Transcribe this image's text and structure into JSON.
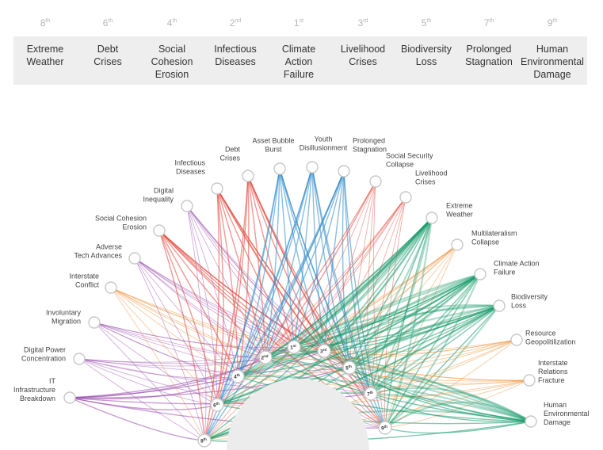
{
  "header": {
    "items": [
      {
        "rank": "8",
        "suffix": "th",
        "label": "Extreme\nWeather"
      },
      {
        "rank": "6",
        "suffix": "th",
        "label": "Debt\nCrises"
      },
      {
        "rank": "4",
        "suffix": "th",
        "label": "Social\nCohesion\nErosion"
      },
      {
        "rank": "2",
        "suffix": "nd",
        "label": "Infectious\nDiseases"
      },
      {
        "rank": "1",
        "suffix": "st",
        "label": "Climate\nAction\nFailure"
      },
      {
        "rank": "3",
        "suffix": "rd",
        "label": "Livelihood\nCrises"
      },
      {
        "rank": "5",
        "suffix": "th",
        "label": "Biodiversity\nLoss"
      },
      {
        "rank": "7",
        "suffix": "th",
        "label": "Prolonged\nStagnation"
      },
      {
        "rank": "9",
        "suffix": "th",
        "label": "Human\nEnvironmental\nDamage"
      }
    ]
  },
  "diagram": {
    "colors": {
      "red": "#e4473a",
      "blue": "#2a86c8",
      "green": "#1a9a6c",
      "orange": "#f08a2c",
      "purple": "#9a4cae",
      "node_fill": "#ffffff",
      "node_stroke": "#c8c8c8",
      "inner_arc": "#ececec"
    },
    "outer_nodes": [
      {
        "id": "it",
        "label": "IT\nInfrastructure\nBreakdown"
      },
      {
        "id": "dpc",
        "label": "Digital Power\nConcentration"
      },
      {
        "id": "im",
        "label": "Involuntary\nMigration"
      },
      {
        "id": "ic",
        "label": "Interstate\nConflict"
      },
      {
        "id": "ata",
        "label": "Adverse\nTech Advances"
      },
      {
        "id": "sce",
        "label": "Social Cohesion\nErosion"
      },
      {
        "id": "di",
        "label": "Digital\nInequality"
      },
      {
        "id": "id",
        "label": "Infectious\nDiseases"
      },
      {
        "id": "dc",
        "label": "Debt\nCrises"
      },
      {
        "id": "abb",
        "label": "Asset Bubble\nBurst"
      },
      {
        "id": "yd",
        "label": "Youth\nDisillusionment"
      },
      {
        "id": "ps",
        "label": "Prolonged\nStagnation"
      },
      {
        "id": "ssc",
        "label": "Social Security\nCollapse"
      },
      {
        "id": "lc",
        "label": "Livelihood\nCrises"
      },
      {
        "id": "ew",
        "label": "Extreme\nWeather"
      },
      {
        "id": "mc",
        "label": "Multilateralism\nCollapse"
      },
      {
        "id": "caf",
        "label": "Climate Action\nFailure"
      },
      {
        "id": "bl",
        "label": "Biodiversity\nLoss"
      },
      {
        "id": "rg",
        "label": "Resource\nGeopolitilization"
      },
      {
        "id": "irf",
        "label": "Interstate\nRelations\nFracture"
      },
      {
        "id": "hed",
        "label": "Human\nEnvironmental\nDamage"
      }
    ],
    "inner_nodes": [
      {
        "rank": "8",
        "suffix": "th"
      },
      {
        "rank": "6",
        "suffix": "th"
      },
      {
        "rank": "4",
        "suffix": "th"
      },
      {
        "rank": "2",
        "suffix": "nd"
      },
      {
        "rank": "1",
        "suffix": "st"
      },
      {
        "rank": "3",
        "suffix": "rd"
      },
      {
        "rank": "5",
        "suffix": "th"
      },
      {
        "rank": "7",
        "suffix": "th"
      },
      {
        "rank": "9",
        "suffix": "th"
      }
    ]
  }
}
